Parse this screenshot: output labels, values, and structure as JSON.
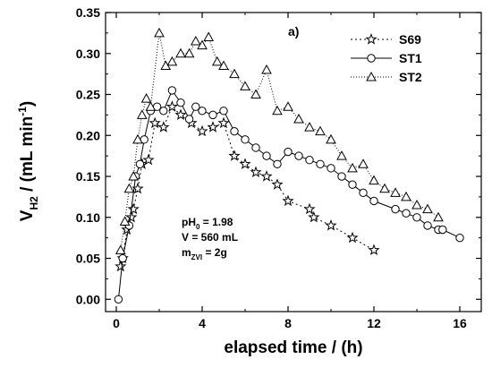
{
  "chart_data": {
    "type": "line",
    "panel_label": "a)",
    "xlabel": "elapsed time / (h)",
    "ylabel": {
      "prefix": "V",
      "subscript": "H2",
      "unit_open": " / (mL min",
      "superscript": "-1",
      "unit_close": ")"
    },
    "xlim": [
      -0.5,
      17
    ],
    "ylim": [
      -0.015,
      0.35
    ],
    "x_ticks": [
      0,
      4,
      8,
      12,
      16
    ],
    "y_ticks": [
      0.0,
      0.05,
      0.1,
      0.15,
      0.2,
      0.25,
      0.3,
      0.35
    ],
    "x_tick_labels": [
      "0",
      "4",
      "8",
      "12",
      "16"
    ],
    "y_tick_labels": [
      "0.00",
      "0.05",
      "0.10",
      "0.15",
      "0.20",
      "0.25",
      "0.30",
      "0.35"
    ],
    "grid": false,
    "legend_position": "top-right",
    "annotations": [
      {
        "base": "pH",
        "sub": "0",
        "rest": " = 1.98"
      },
      {
        "base": "V = 560 mL",
        "sub": "",
        "rest": ""
      },
      {
        "base": "m",
        "sub": "ZVI",
        "rest": " = 2g"
      }
    ],
    "series": [
      {
        "name": "S69",
        "marker": "star",
        "dash": "2,3",
        "x": [
          0.2,
          0.3,
          0.5,
          0.7,
          0.8,
          1.0,
          1.2,
          1.5,
          1.8,
          2.2,
          2.6,
          3.0,
          3.5,
          4.0,
          4.5,
          5.0,
          5.5,
          6.0,
          6.5,
          7.0,
          7.5,
          8.0,
          9.0,
          9.2,
          10.0,
          11.0,
          12.0
        ],
        "y": [
          0.04,
          0.05,
          0.085,
          0.1,
          0.11,
          0.135,
          0.165,
          0.17,
          0.215,
          0.21,
          0.235,
          0.225,
          0.215,
          0.205,
          0.21,
          0.215,
          0.175,
          0.165,
          0.155,
          0.15,
          0.14,
          0.12,
          0.11,
          0.1,
          0.09,
          0.075,
          0.06
        ]
      },
      {
        "name": "ST1",
        "marker": "circle",
        "dash": "",
        "x": [
          0.1,
          0.3,
          0.6,
          0.9,
          1.1,
          1.3,
          1.6,
          1.9,
          2.2,
          2.6,
          3.0,
          3.4,
          3.7,
          4.0,
          4.5,
          5.0,
          5.5,
          6.0,
          6.5,
          7.0,
          7.5,
          8.0,
          8.5,
          9.0,
          9.5,
          10.0,
          10.5,
          11.0,
          11.5,
          12.0,
          13.0,
          13.5,
          14.0,
          14.5,
          15.0,
          15.2,
          16.0
        ],
        "y": [
          0.0,
          0.05,
          0.09,
          0.15,
          0.165,
          0.195,
          0.23,
          0.235,
          0.23,
          0.255,
          0.24,
          0.22,
          0.235,
          0.23,
          0.225,
          0.23,
          0.205,
          0.195,
          0.185,
          0.175,
          0.165,
          0.18,
          0.175,
          0.17,
          0.165,
          0.16,
          0.15,
          0.14,
          0.13,
          0.12,
          0.11,
          0.105,
          0.1,
          0.09,
          0.085,
          0.085,
          0.075
        ]
      },
      {
        "name": "ST2",
        "marker": "triangle",
        "dash": "1,2",
        "x": [
          0.2,
          0.4,
          0.6,
          0.8,
          1.0,
          1.2,
          1.4,
          1.6,
          2.0,
          2.3,
          2.6,
          3.0,
          3.4,
          3.7,
          4.0,
          4.3,
          4.7,
          5.0,
          5.5,
          6.0,
          6.5,
          7.0,
          7.5,
          8.0,
          8.5,
          9.0,
          9.5,
          10.0,
          10.5,
          11.0,
          11.5,
          12.0,
          12.5,
          13.0,
          13.5,
          14.0,
          14.5,
          15.0
        ],
        "y": [
          0.06,
          0.095,
          0.135,
          0.15,
          0.195,
          0.225,
          0.245,
          0.235,
          0.325,
          0.285,
          0.29,
          0.3,
          0.3,
          0.315,
          0.31,
          0.32,
          0.29,
          0.285,
          0.275,
          0.26,
          0.25,
          0.28,
          0.23,
          0.235,
          0.22,
          0.21,
          0.205,
          0.195,
          0.175,
          0.16,
          0.165,
          0.145,
          0.135,
          0.13,
          0.125,
          0.115,
          0.11,
          0.1
        ]
      }
    ]
  }
}
